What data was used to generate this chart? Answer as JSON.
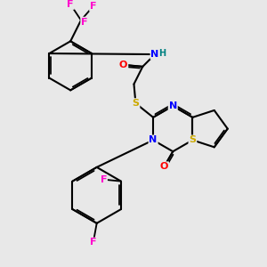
{
  "bg_color": "#e8e8e8",
  "bond_color": "#000000",
  "atom_colors": {
    "F": "#ff00cc",
    "N": "#0000ff",
    "O": "#ff0000",
    "S": "#ccaa00",
    "H": "#008080",
    "C": "#000000"
  },
  "figsize": [
    3.0,
    3.0
  ],
  "dpi": 100,
  "lw": 1.5,
  "fs": 8.0
}
